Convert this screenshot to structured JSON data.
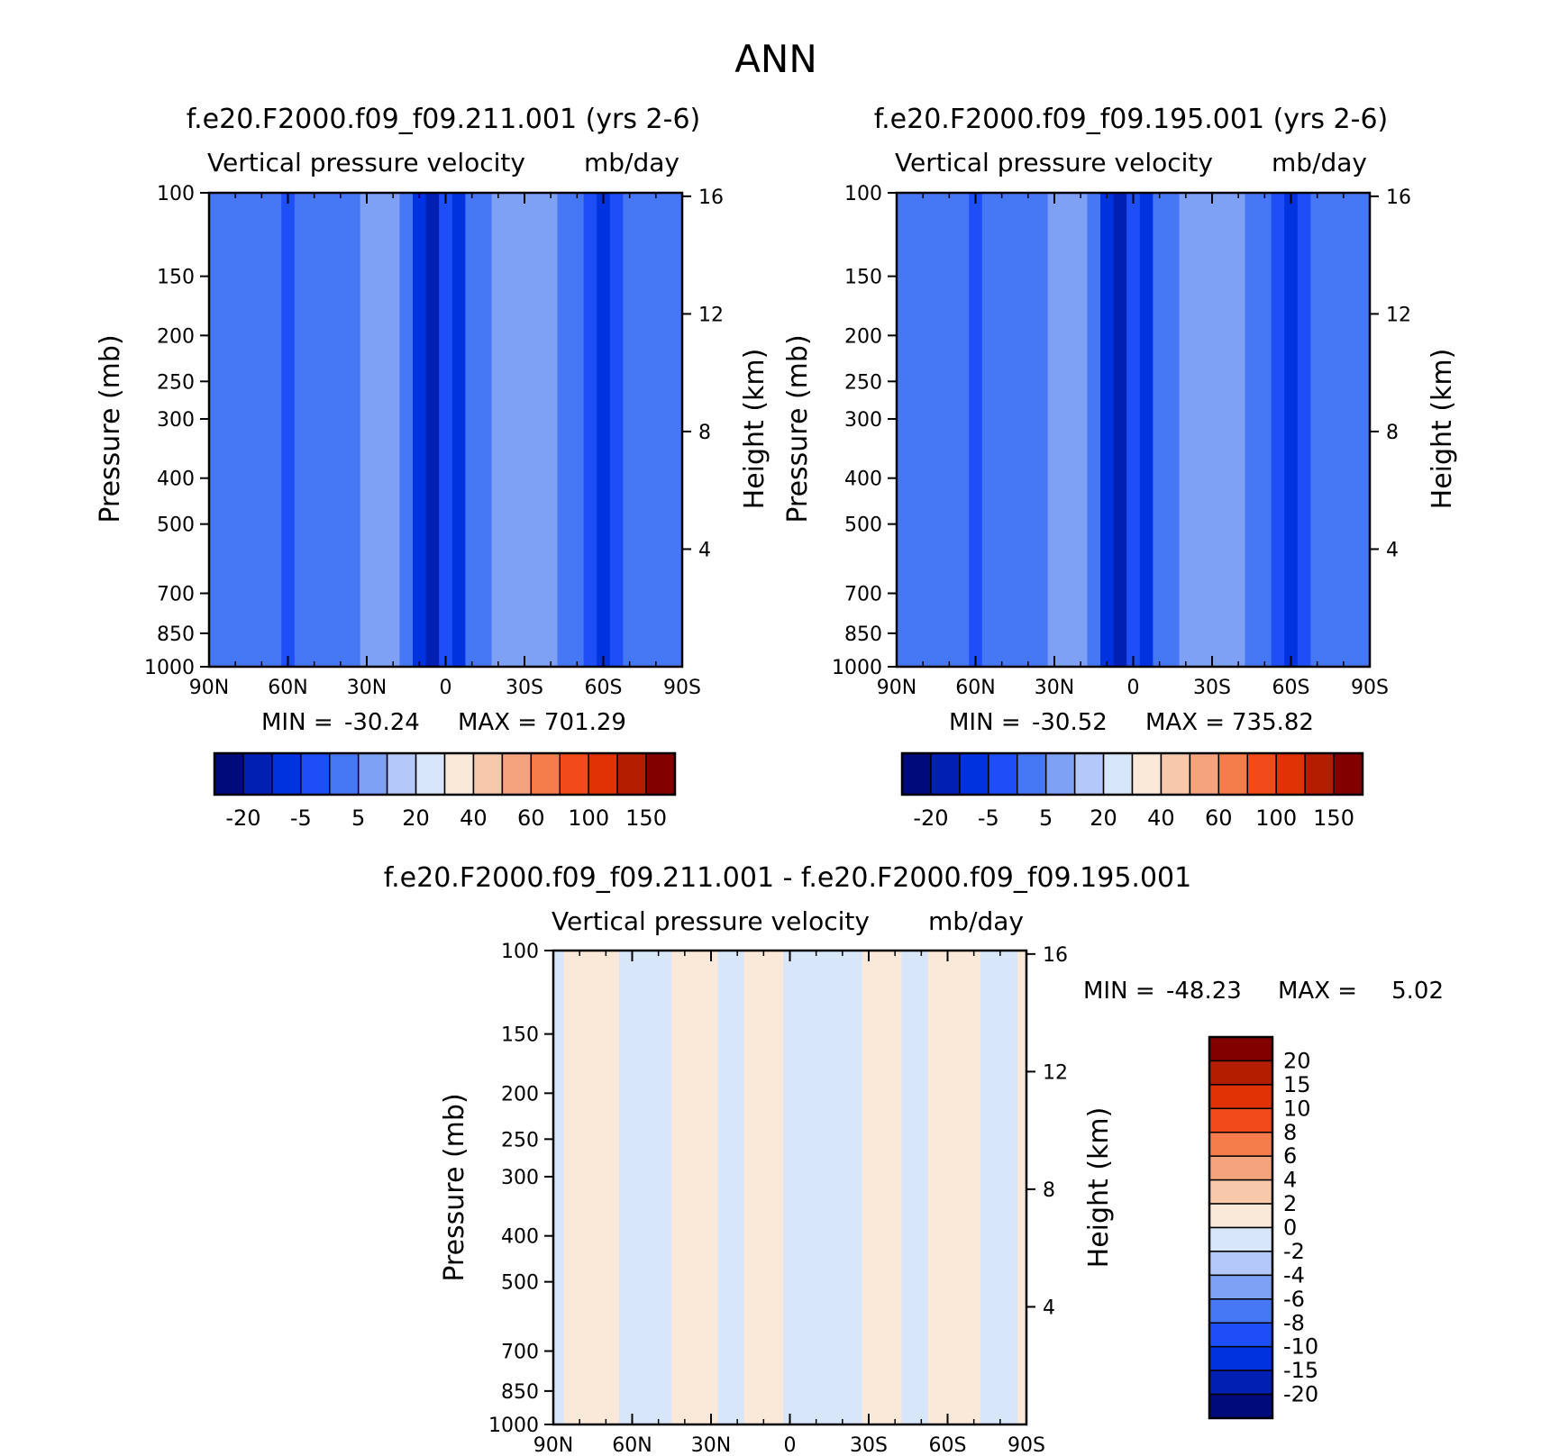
{
  "page_title": "ANN",
  "palette_top": [
    "#000a78",
    "#0020b4",
    "#0032e0",
    "#1e4ef5",
    "#4678f5",
    "#7ea0f5",
    "#b4c8fa",
    "#d8e6fa",
    "#fae8d8",
    "#f8c8aa",
    "#f5a37d",
    "#f57d4b",
    "#f04b19",
    "#e13205",
    "#b41e00",
    "#820000"
  ],
  "palette_diff": [
    "#000a78",
    "#0020b4",
    "#0032e0",
    "#1e4ef5",
    "#4678f5",
    "#7ea0f5",
    "#b4c8fa",
    "#d8e6fa",
    "#fae8d8",
    "#f8c8aa",
    "#f5a37d",
    "#f57d4b",
    "#f04b19",
    "#e13205",
    "#b41e00",
    "#820000"
  ],
  "chart_data": [
    {
      "type": "heatmap",
      "id": "panel1",
      "title": "f.e20.F2000.f09_f09.211.001 (yrs 2-6)",
      "subtitle_left": "Vertical pressure velocity",
      "subtitle_right": "mb/day",
      "ylabel": "Pressure (mb)",
      "ylabel_right": "Height (km)",
      "x_ticks": [
        "90N",
        "60N",
        "30N",
        "0",
        "30S",
        "60S",
        "90S"
      ],
      "y_ticks": [
        100,
        150,
        200,
        250,
        300,
        400,
        500,
        700,
        850,
        1000
      ],
      "y_right_ticks": [
        16,
        12,
        8,
        4
      ],
      "stats": {
        "min_label": "MIN =",
        "min": "-30.24",
        "max_label": "MAX =",
        "max": "701.29"
      },
      "colorbar_labels": [
        "-20",
        "-5",
        "5",
        "20",
        "40",
        "60",
        "100",
        "150"
      ],
      "columns": [
        {
          "x": 90,
          "v": -5
        },
        {
          "x": 85,
          "v": -5
        },
        {
          "x": 80,
          "v": -1
        },
        {
          "x": 75,
          "v": -3
        },
        {
          "x": 70,
          "v": -5
        },
        {
          "x": 65,
          "v": -4
        },
        {
          "x": 60,
          "v": -10
        },
        {
          "x": 55,
          "v": -5
        },
        {
          "x": 50,
          "v": -3
        },
        {
          "x": 45,
          "v": -5
        },
        {
          "x": 40,
          "v": -3
        },
        {
          "x": 35,
          "v": -2
        },
        {
          "x": 30,
          "v": 1
        },
        {
          "x": 25,
          "v": 3
        },
        {
          "x": 20,
          "v": 1
        },
        {
          "x": 15,
          "v": -3
        },
        {
          "x": 10,
          "v": -15
        },
        {
          "x": 5,
          "v": -20
        },
        {
          "x": 0,
          "v": -10
        },
        {
          "x": -5,
          "v": -15
        },
        {
          "x": -10,
          "v": -5
        },
        {
          "x": -15,
          "v": -3
        },
        {
          "x": -20,
          "v": 1
        },
        {
          "x": -25,
          "v": 3
        },
        {
          "x": -30,
          "v": 4
        },
        {
          "x": -35,
          "v": 3
        },
        {
          "x": -40,
          "v": 1
        },
        {
          "x": -45,
          "v": -3
        },
        {
          "x": -50,
          "v": -5
        },
        {
          "x": -55,
          "v": -10
        },
        {
          "x": -60,
          "v": -15
        },
        {
          "x": -65,
          "v": -10
        },
        {
          "x": -70,
          "v": -5
        },
        {
          "x": -75,
          "v": -3
        },
        {
          "x": -80,
          "v": -4
        },
        {
          "x": -85,
          "v": -5
        },
        {
          "x": -90,
          "v": -5
        }
      ]
    },
    {
      "type": "heatmap",
      "id": "panel2",
      "title": "f.e20.F2000.f09_f09.195.001 (yrs 2-6)",
      "subtitle_left": "Vertical pressure velocity",
      "subtitle_right": "mb/day",
      "ylabel": "Pressure (mb)",
      "ylabel_right": "Height (km)",
      "x_ticks": [
        "90N",
        "60N",
        "30N",
        "0",
        "30S",
        "60S",
        "90S"
      ],
      "y_ticks": [
        100,
        150,
        200,
        250,
        300,
        400,
        500,
        700,
        850,
        1000
      ],
      "y_right_ticks": [
        16,
        12,
        8,
        4
      ],
      "stats": {
        "min_label": "MIN =",
        "min": "-30.52",
        "max_label": "MAX =",
        "max": "735.82"
      },
      "colorbar_labels": [
        "-20",
        "-5",
        "5",
        "20",
        "40",
        "60",
        "100",
        "150"
      ],
      "columns": [
        {
          "x": 90,
          "v": -5
        },
        {
          "x": 85,
          "v": -5
        },
        {
          "x": 80,
          "v": -1
        },
        {
          "x": 75,
          "v": -3
        },
        {
          "x": 70,
          "v": -5
        },
        {
          "x": 65,
          "v": -4
        },
        {
          "x": 60,
          "v": -10
        },
        {
          "x": 55,
          "v": -5
        },
        {
          "x": 50,
          "v": -3
        },
        {
          "x": 45,
          "v": -5
        },
        {
          "x": 40,
          "v": -3
        },
        {
          "x": 35,
          "v": -2
        },
        {
          "x": 30,
          "v": 1
        },
        {
          "x": 25,
          "v": 3
        },
        {
          "x": 20,
          "v": 1
        },
        {
          "x": 15,
          "v": -3
        },
        {
          "x": 10,
          "v": -15
        },
        {
          "x": 5,
          "v": -20
        },
        {
          "x": 0,
          "v": -10
        },
        {
          "x": -5,
          "v": -15
        },
        {
          "x": -10,
          "v": -5
        },
        {
          "x": -15,
          "v": -3
        },
        {
          "x": -20,
          "v": 1
        },
        {
          "x": -25,
          "v": 3
        },
        {
          "x": -30,
          "v": 4
        },
        {
          "x": -35,
          "v": 3
        },
        {
          "x": -40,
          "v": 1
        },
        {
          "x": -45,
          "v": -3
        },
        {
          "x": -50,
          "v": -5
        },
        {
          "x": -55,
          "v": -10
        },
        {
          "x": -60,
          "v": -15
        },
        {
          "x": -65,
          "v": -10
        },
        {
          "x": -70,
          "v": -5
        },
        {
          "x": -75,
          "v": -3
        },
        {
          "x": -80,
          "v": -4
        },
        {
          "x": -85,
          "v": -5
        },
        {
          "x": -90,
          "v": -5
        }
      ]
    },
    {
      "type": "heatmap",
      "id": "panel3",
      "title": "f.e20.F2000.f09_f09.211.001 - f.e20.F2000.f09_f09.195.001",
      "subtitle_left": "Vertical pressure velocity",
      "subtitle_right": "mb/day",
      "ylabel": "Pressure (mb)",
      "ylabel_right": "Height (km)",
      "x_ticks": [
        "90N",
        "60N",
        "30N",
        "0",
        "30S",
        "60S",
        "90S"
      ],
      "y_ticks": [
        100,
        150,
        200,
        250,
        300,
        400,
        500,
        700,
        850,
        1000
      ],
      "y_right_ticks": [
        16,
        12,
        8,
        4
      ],
      "stats": {
        "min_label": "MIN =",
        "min": "-48.23",
        "max_label": "MAX =",
        "max": "5.02"
      },
      "colorbar_labels": [
        "20",
        "15",
        "10",
        "8",
        "6",
        "4",
        "2",
        "0",
        "-2",
        "-4",
        "-6",
        "-8",
        "-10",
        "-15",
        "-20"
      ],
      "columns": [
        {
          "x": 90,
          "v": -1
        },
        {
          "x": 82,
          "v": 1
        },
        {
          "x": 75,
          "v": 1
        },
        {
          "x": 68,
          "v": 1
        },
        {
          "x": 62,
          "v": -1
        },
        {
          "x": 55,
          "v": -1
        },
        {
          "x": 48,
          "v": -1
        },
        {
          "x": 42,
          "v": 1
        },
        {
          "x": 35,
          "v": 1
        },
        {
          "x": 30,
          "v": 1
        },
        {
          "x": 25,
          "v": -1
        },
        {
          "x": 20,
          "v": -1
        },
        {
          "x": 15,
          "v": 1
        },
        {
          "x": 10,
          "v": 1
        },
        {
          "x": 5,
          "v": 1
        },
        {
          "x": 0,
          "v": -1
        },
        {
          "x": -5,
          "v": -1
        },
        {
          "x": -10,
          "v": -1
        },
        {
          "x": -15,
          "v": -1
        },
        {
          "x": -20,
          "v": -1
        },
        {
          "x": -25,
          "v": -1
        },
        {
          "x": -30,
          "v": 1
        },
        {
          "x": -35,
          "v": 1
        },
        {
          "x": -40,
          "v": 1
        },
        {
          "x": -45,
          "v": -1
        },
        {
          "x": -50,
          "v": -1
        },
        {
          "x": -55,
          "v": 1
        },
        {
          "x": -60,
          "v": 1
        },
        {
          "x": -65,
          "v": 1
        },
        {
          "x": -70,
          "v": 1
        },
        {
          "x": -75,
          "v": -1
        },
        {
          "x": -80,
          "v": -1
        },
        {
          "x": -85,
          "v": -1
        },
        {
          "x": -88,
          "v": 1
        },
        {
          "x": -90,
          "v": 1
        }
      ]
    }
  ]
}
